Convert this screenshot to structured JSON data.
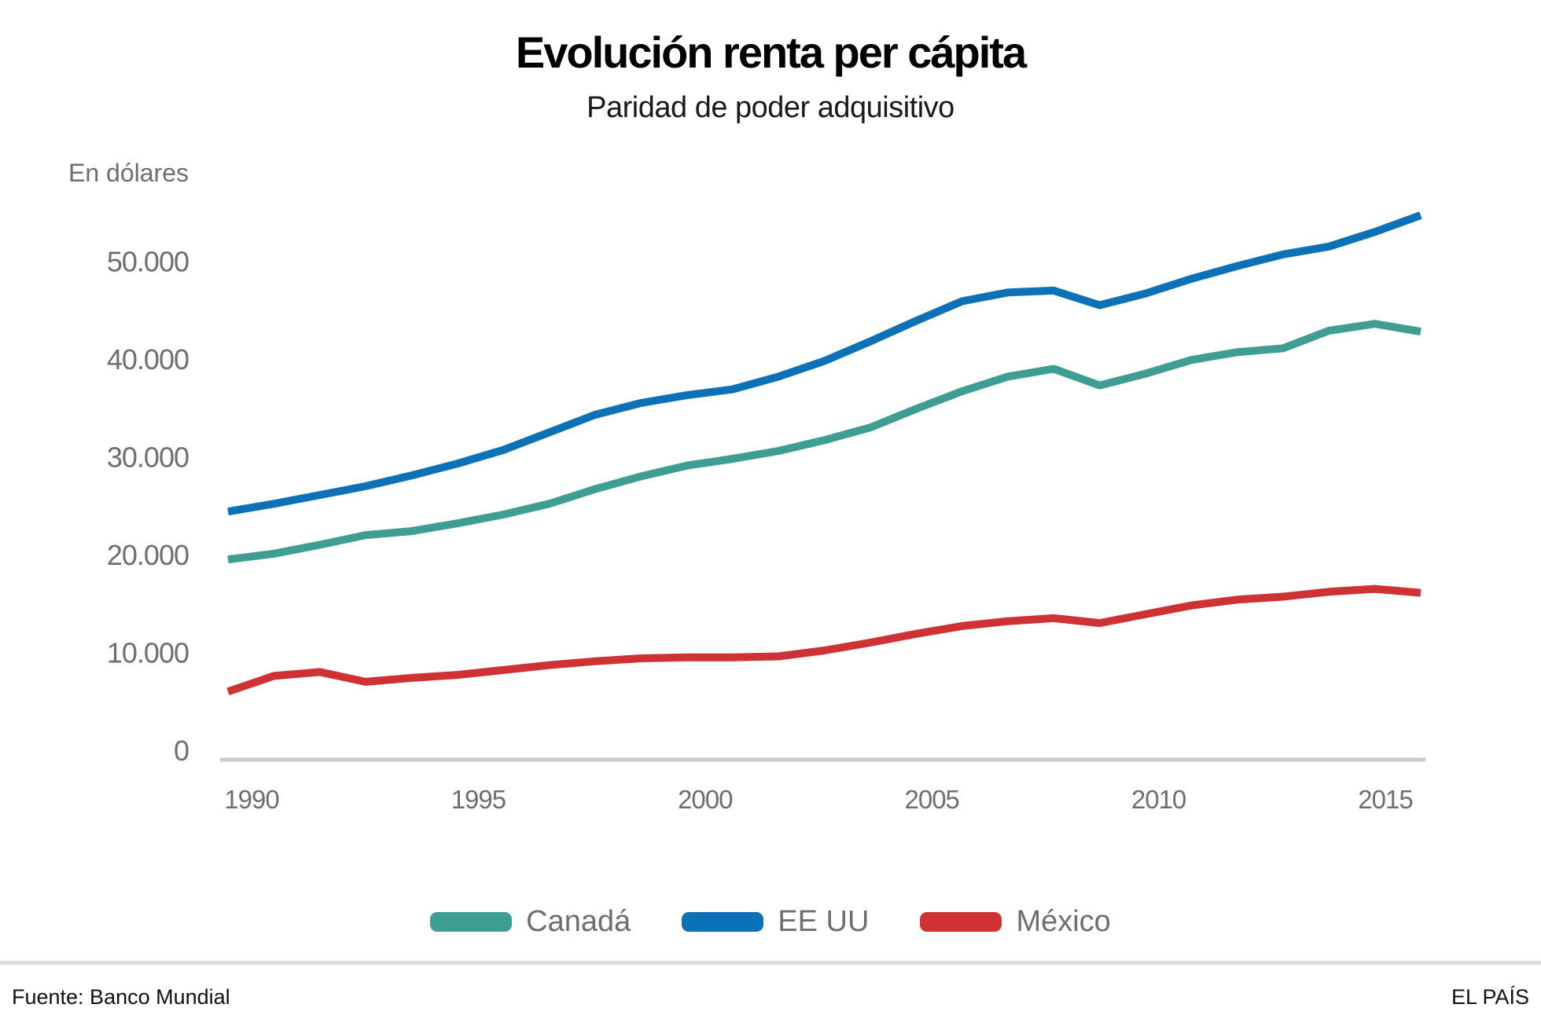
{
  "chart_data": {
    "type": "line",
    "title": "Evolución renta per cápita",
    "subtitle": "Paridad de poder adquisitivo",
    "unit_label": "En dólares",
    "xlabel": "",
    "ylabel": "En dólares",
    "ylim": [
      0,
      55000
    ],
    "grid": false,
    "legend_position": "bottom",
    "x": [
      1990,
      1991,
      1992,
      1993,
      1994,
      1995,
      1996,
      1997,
      1998,
      1999,
      2000,
      2001,
      2002,
      2003,
      2004,
      2005,
      2006,
      2007,
      2008,
      2009,
      2010,
      2011,
      2012,
      2013,
      2014,
      2015,
      2016
    ],
    "x_ticks": [
      1990,
      1995,
      2000,
      2005,
      2010,
      2015
    ],
    "y_ticks": [
      0,
      10000,
      20000,
      30000,
      40000,
      50000
    ],
    "y_tick_labels": [
      "0",
      "10.000",
      "20.000",
      "30.000",
      "40.000",
      "50.000"
    ],
    "series": [
      {
        "name": "Canadá",
        "color": "#3f9e93",
        "values": [
          19500,
          20100,
          21000,
          22000,
          22400,
          23200,
          24100,
          25200,
          26700,
          28000,
          29100,
          29800,
          30600,
          31700,
          33000,
          34900,
          36700,
          38200,
          39000,
          37300,
          38500,
          39900,
          40700,
          41100,
          42900,
          43600,
          42800
        ]
      },
      {
        "name": "EE UU",
        "color": "#0d71b8",
        "values": [
          24400,
          25200,
          26100,
          27000,
          28100,
          29300,
          30700,
          32500,
          34300,
          35500,
          36300,
          36900,
          38200,
          39800,
          41800,
          43900,
          45900,
          46800,
          47000,
          45500,
          46700,
          48200,
          49500,
          50700,
          51500,
          53000,
          54700
        ]
      },
      {
        "name": "México",
        "color": "#ce3235",
        "values": [
          6000,
          7600,
          8000,
          7000,
          7400,
          7700,
          8200,
          8700,
          9100,
          9400,
          9500,
          9500,
          9600,
          10200,
          11000,
          11900,
          12700,
          13200,
          13500,
          13000,
          13900,
          14800,
          15400,
          15700,
          16200,
          16500,
          16100
        ]
      }
    ]
  },
  "footer": {
    "source": "Fuente: Banco Mundial",
    "brand": "EL PAÍS"
  }
}
